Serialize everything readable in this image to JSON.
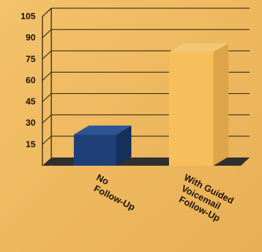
{
  "chart_data": {
    "type": "bar",
    "categories": [
      [
        "No",
        "Follow-Up"
      ],
      [
        "With Guided",
        "Voicemail",
        "Follow-Up"
      ]
    ],
    "values": [
      22,
      80
    ],
    "ylim": [
      0,
      105
    ],
    "yticks": [
      "15",
      "30",
      "45",
      "60",
      "75",
      "90",
      "105"
    ],
    "grid": true,
    "colors": {
      "background": "#f0bc63",
      "bar_1": "#1e3f78",
      "bar_2": "#f7be5c",
      "floor": "#2f2f2f"
    }
  }
}
